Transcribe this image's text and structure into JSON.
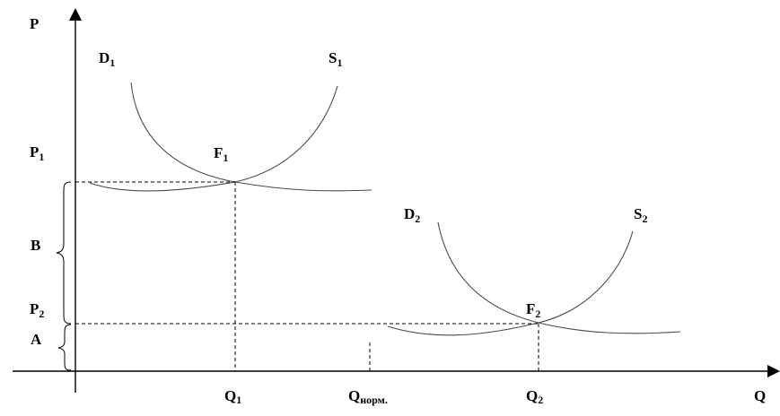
{
  "axes": {
    "y_label": "P",
    "x_label": "Q"
  },
  "curves": {
    "d1": {
      "letter": "D",
      "sub": "1"
    },
    "s1": {
      "letter": "S",
      "sub": "1"
    },
    "d2": {
      "letter": "D",
      "sub": "2"
    },
    "s2": {
      "letter": "S",
      "sub": "2"
    }
  },
  "points": {
    "f1": {
      "letter": "F",
      "sub": "1"
    },
    "f2": {
      "letter": "F",
      "sub": "2"
    }
  },
  "price_labels": {
    "p1": {
      "letter": "P",
      "sub": "1"
    },
    "p2": {
      "letter": "P",
      "sub": "2"
    }
  },
  "quantity_labels": {
    "q1": {
      "letter": "Q",
      "sub": "1"
    },
    "qnorm": {
      "letter": "Q",
      "sub": "норм."
    },
    "q2": {
      "letter": "Q",
      "sub": "2"
    }
  },
  "segments": {
    "a": "A",
    "b": "B"
  }
}
